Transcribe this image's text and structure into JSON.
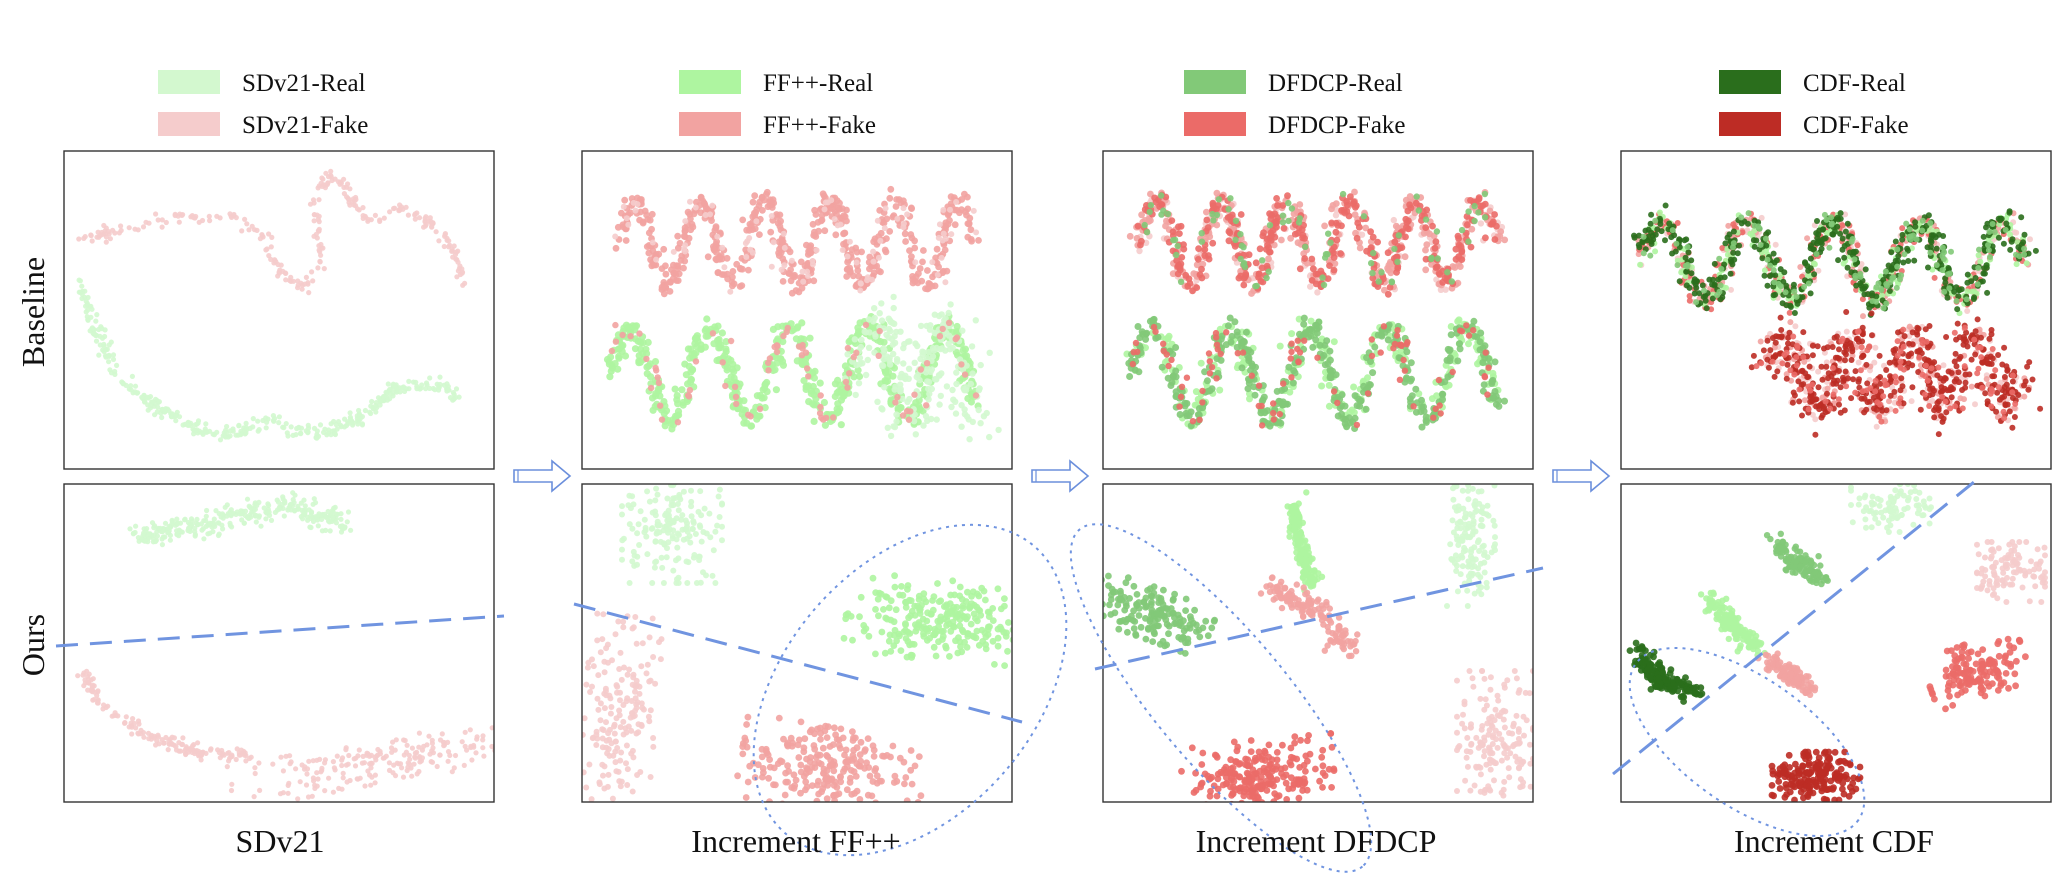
{
  "row_labels": [
    "Baseline",
    "Ours"
  ],
  "stage_titles": [
    "SDv21",
    "Increment FF++",
    "Increment DFDCP",
    "Increment CDF"
  ],
  "legends": [
    [
      {
        "label": "SDv21-Real",
        "color": "#d3f8cf"
      },
      {
        "label": "SDv21-Fake",
        "color": "#f5cccc"
      }
    ],
    [
      {
        "label": "FF++-Real",
        "color": "#aef5a0"
      },
      {
        "label": "FF++-Fake",
        "color": "#f2a3a1"
      }
    ],
    [
      {
        "label": "DFDCP-Real",
        "color": "#82c978"
      },
      {
        "label": "DFDCP-Fake",
        "color": "#eb6b68"
      }
    ],
    [
      {
        "label": "CDF-Real",
        "color": "#2a6e1c"
      },
      {
        "label": "CDF-Fake",
        "color": "#bd2c25"
      }
    ]
  ],
  "chart_data": {
    "type": "scatter",
    "description_units": "t-SNE embedding, no axes",
    "panels": [
      {
        "row": "Baseline",
        "stage": "SDv21",
        "series": [
          "SDv21-Real",
          "SDv21-Fake"
        ]
      },
      {
        "row": "Baseline",
        "stage": "Increment FF++",
        "series": [
          "SDv21-Real",
          "SDv21-Fake",
          "FF++-Real",
          "FF++-Fake"
        ]
      },
      {
        "row": "Baseline",
        "stage": "Increment DFDCP",
        "series": [
          "SDv21-Real",
          "SDv21-Fake",
          "FF++-Real",
          "FF++-Fake",
          "DFDCP-Real",
          "DFDCP-Fake"
        ]
      },
      {
        "row": "Baseline",
        "stage": "Increment CDF",
        "series": [
          "SDv21-Real",
          "SDv21-Fake",
          "FF++-Real",
          "FF++-Fake",
          "DFDCP-Real",
          "DFDCP-Fake",
          "CDF-Real",
          "CDF-Fake"
        ]
      },
      {
        "row": "Ours",
        "stage": "SDv21",
        "series": [
          "SDv21-Real",
          "SDv21-Fake"
        ]
      },
      {
        "row": "Ours",
        "stage": "Increment FF++",
        "series": [
          "SDv21-Real",
          "SDv21-Fake",
          "FF++-Real",
          "FF++-Fake"
        ]
      },
      {
        "row": "Ours",
        "stage": "Increment DFDCP",
        "series": [
          "SDv21-Real",
          "SDv21-Fake",
          "FF++-Real",
          "FF++-Fake",
          "DFDCP-Real",
          "DFDCP-Fake"
        ]
      },
      {
        "row": "Ours",
        "stage": "Increment CDF",
        "series": [
          "SDv21-Real",
          "SDv21-Fake",
          "FF++-Real",
          "FF++-Fake",
          "DFDCP-Real",
          "DFDCP-Fake",
          "CDF-Real",
          "CDF-Fake"
        ]
      }
    ],
    "boundary_line_style": "dashed",
    "boundary_line_color": "#7094e0",
    "highlight_ellipse_style": "dotted"
  }
}
